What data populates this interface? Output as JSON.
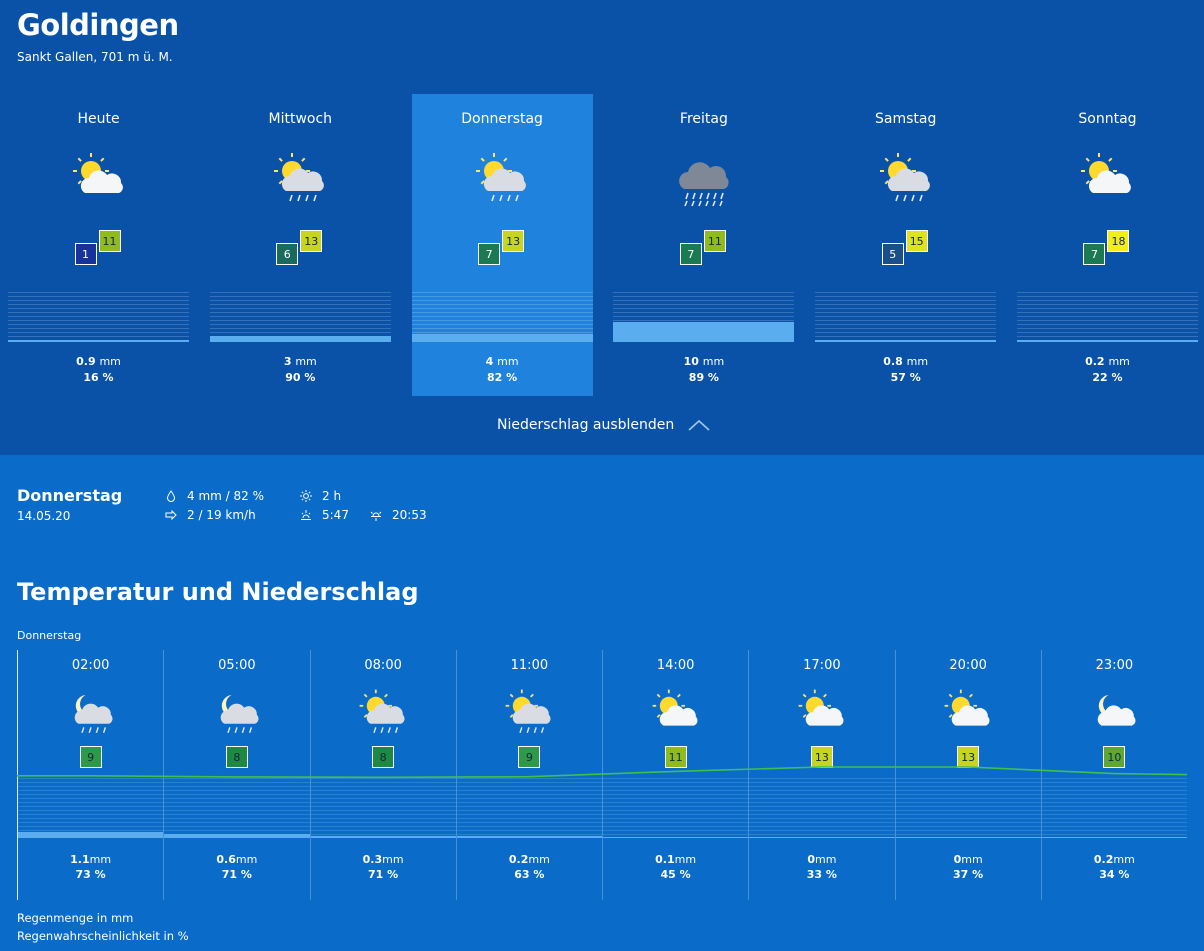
{
  "location": {
    "name": "Goldingen",
    "subtitle": "Sankt Gallen, 701 m ü. M."
  },
  "days": [
    {
      "name": "Heute",
      "icon": "sun-cloud-icon",
      "min": "1",
      "max": "11",
      "min_color": "#17339b",
      "max_color": "#8fbb1c",
      "precip_mm": "0.9",
      "precip_unit": "mm",
      "probability": "16 %",
      "precip_fraction": 0.05
    },
    {
      "name": "Mittwoch",
      "icon": "sun-cloud-rain-icon",
      "min": "6",
      "max": "13",
      "min_color": "#1a6a5e",
      "max_color": "#c7d51e",
      "precip_mm": "3",
      "precip_unit": "mm",
      "probability": "90 %",
      "precip_fraction": 0.12
    },
    {
      "name": "Donnerstag",
      "icon": "sun-cloud-rain-icon",
      "min": "7",
      "max": "13",
      "min_color": "#1b7a52",
      "max_color": "#c7d51e",
      "precip_mm": "4",
      "precip_unit": "mm",
      "probability": "82 %",
      "precip_fraction": 0.16,
      "selected": true
    },
    {
      "name": "Freitag",
      "icon": "cloud-rain-icon",
      "min": "7",
      "max": "11",
      "min_color": "#1b7a52",
      "max_color": "#8fbb1c",
      "precip_mm": "10",
      "precip_unit": "mm",
      "probability": "89 %",
      "precip_fraction": 0.4
    },
    {
      "name": "Samstag",
      "icon": "sun-cloud-rain-icon",
      "min": "5",
      "max": "15",
      "min_color": "#1a4f8c",
      "max_color": "#dde31e",
      "precip_mm": "0.8",
      "precip_unit": "mm",
      "probability": "57 %",
      "precip_fraction": 0.05
    },
    {
      "name": "Sonntag",
      "icon": "sun-cloud-icon",
      "min": "7",
      "max": "18",
      "min_color": "#1b7a52",
      "max_color": "#f2ee1a",
      "precip_mm": "0.2",
      "precip_unit": "mm",
      "probability": "22 %",
      "precip_fraction": 0.02
    }
  ],
  "toggle_label": "Niederschlag ausblenden",
  "detail": {
    "day": "Donnerstag",
    "date": "14.05.20",
    "precip": "4 mm / 82 %",
    "wind": "2 / 19 km/h",
    "sunshine": "2 h",
    "sunrise": "5:47",
    "sunset": "20:53"
  },
  "section_title": "Temperatur und Niederschlag",
  "hourly_day": "Donnerstag",
  "hours": [
    {
      "time": "02:00",
      "icon": "moon-cloud-rain-icon",
      "temp": "9",
      "temp_color": "#2e9a48",
      "precip_mm": "1.1",
      "precip_unit": "mm",
      "probability": "73 %",
      "precip_fraction": 0.1
    },
    {
      "time": "05:00",
      "icon": "moon-cloud-rain-icon",
      "temp": "8",
      "temp_color": "#1d8a42",
      "precip_mm": "0.6",
      "precip_unit": "mm",
      "probability": "71 %",
      "precip_fraction": 0.06
    },
    {
      "time": "08:00",
      "icon": "sun-cloud-rain-icon",
      "temp": "8",
      "temp_color": "#1d8a42",
      "precip_mm": "0.3",
      "precip_unit": "mm",
      "probability": "71 %",
      "precip_fraction": 0.04
    },
    {
      "time": "11:00",
      "icon": "sun-cloud-rain-icon",
      "temp": "9",
      "temp_color": "#2e9a48",
      "precip_mm": "0.2",
      "precip_unit": "mm",
      "probability": "63 %",
      "precip_fraction": 0.03
    },
    {
      "time": "14:00",
      "icon": "sun-cloud-icon",
      "temp": "11",
      "temp_color": "#8fbb1c",
      "precip_mm": "0.1",
      "precip_unit": "mm",
      "probability": "45 %",
      "precip_fraction": 0.02
    },
    {
      "time": "17:00",
      "icon": "sun-cloud-icon",
      "temp": "13",
      "temp_color": "#c7d51e",
      "precip_mm": "0",
      "precip_unit": "mm",
      "probability": "33 %",
      "precip_fraction": 0
    },
    {
      "time": "20:00",
      "icon": "sun-cloud-icon",
      "temp": "13",
      "temp_color": "#c7d51e",
      "precip_mm": "0",
      "precip_unit": "mm",
      "probability": "37 %",
      "precip_fraction": 0
    },
    {
      "time": "23:00",
      "icon": "moon-cloud-icon",
      "temp": "10",
      "temp_color": "#5ea832",
      "precip_mm": "0.2",
      "precip_unit": "mm",
      "probability": "34 %",
      "precip_fraction": 0.02
    }
  ],
  "temp_curve": [
    9,
    8.5,
    8.3,
    8.6,
    11,
    13,
    13,
    10
  ],
  "legend": {
    "line1": "Regenmenge in mm",
    "line2": "Regenwahrscheinlichkeit in %"
  },
  "colors": {
    "top_bg": "#0a52a8",
    "page_bg": "#0a6cc8",
    "selected_bg": "#1f82dc",
    "precip_fill": "#5aaef0",
    "temp_line": "#3fbf52"
  }
}
